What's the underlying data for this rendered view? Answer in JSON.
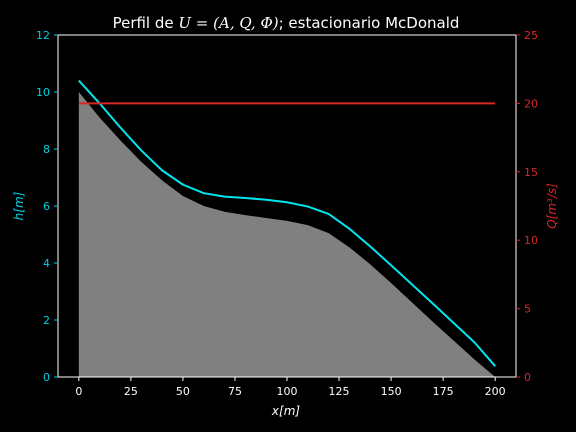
{
  "chart_data": {
    "type": "line",
    "title_prefix": "Perfil de ",
    "title_math": "U = (A, Q, Φ)",
    "title_suffix": "; estacionario McDonald",
    "xlabel": "x[m]",
    "ylabel_left": "h[m]",
    "ylabel_right": "Q[m³/s]",
    "xlim": [
      -10,
      210
    ],
    "ylim_left": [
      0,
      12
    ],
    "ylim_right": [
      0,
      25
    ],
    "x_ticks": [
      0,
      25,
      50,
      75,
      100,
      125,
      150,
      175,
      200
    ],
    "y_ticks_left": [
      0,
      2,
      4,
      6,
      8,
      10,
      12
    ],
    "y_ticks_right": [
      0,
      5,
      10,
      15,
      20,
      25
    ],
    "grid": false,
    "series": [
      {
        "axis": "left",
        "style": "filled-area",
        "x": [
          0,
          10,
          20,
          30,
          40,
          50,
          60,
          70,
          80,
          90,
          100,
          110,
          120,
          130,
          140,
          150,
          160,
          170,
          180,
          190,
          200
        ],
        "values": [
          10.0,
          9.1,
          8.3,
          7.55,
          6.9,
          6.35,
          6.0,
          5.8,
          5.68,
          5.58,
          5.48,
          5.33,
          5.05,
          4.55,
          3.95,
          3.3,
          2.62,
          1.94,
          1.28,
          0.62,
          0.0
        ]
      },
      {
        "axis": "left",
        "style": "line",
        "x": [
          0,
          10,
          20,
          30,
          40,
          50,
          60,
          70,
          80,
          90,
          100,
          110,
          120,
          130,
          140,
          150,
          160,
          170,
          180,
          190,
          200
        ],
        "values": [
          10.4,
          9.6,
          8.75,
          7.95,
          7.25,
          6.75,
          6.45,
          6.33,
          6.28,
          6.22,
          6.13,
          5.98,
          5.72,
          5.2,
          4.58,
          3.92,
          3.25,
          2.58,
          1.9,
          1.22,
          0.38
        ]
      },
      {
        "axis": "right",
        "style": "line",
        "x": [
          0,
          200
        ],
        "values": [
          20,
          20
        ]
      }
    ]
  },
  "colors": {
    "background": "#000000",
    "axis": "#ffffff",
    "depth_line": "#00e5ee",
    "left_axis": "#00cfe0",
    "discharge_line": "#d62728",
    "right_axis": "#d62728",
    "fill": "#808080"
  }
}
